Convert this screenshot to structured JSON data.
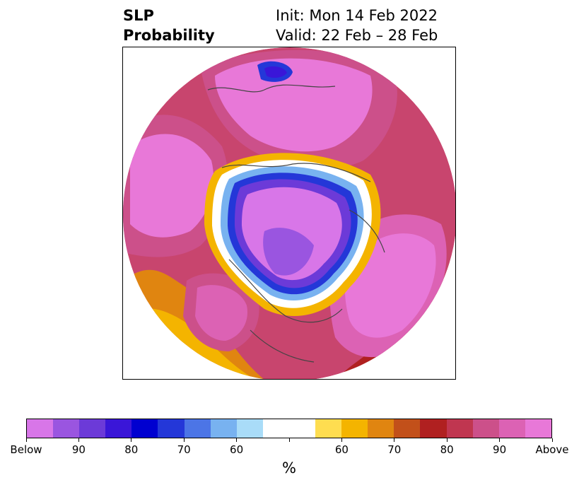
{
  "title": {
    "line1": "SLP",
    "line2": "Probability",
    "init": "Init: Mon 14 Feb 2022",
    "valid": "Valid: 22 Feb – 28 Feb"
  },
  "colorbar": {
    "unit": "%",
    "colors": [
      "#d876e8",
      "#9a55e0",
      "#6c3ad8",
      "#3a16d8",
      "#0000d0",
      "#2437d8",
      "#4c75e6",
      "#78b2f0",
      "#a9dcf8",
      "#ffffff",
      "#ffffff",
      "#fedd50",
      "#f4b400",
      "#e08510",
      "#c2501a",
      "#b02020",
      "#c03650",
      "#cc508a",
      "#dc62b4",
      "#e878d8"
    ],
    "tick_labels": [
      "Below",
      "90",
      "80",
      "70",
      "60",
      "",
      "60",
      "70",
      "80",
      "90",
      "Above"
    ]
  },
  "map": {
    "projection": "north-polar-stereographic",
    "regions": [
      {
        "name": "north-atlantic-europe-above",
        "category": "above"
      },
      {
        "name": "north-pacific-above",
        "category": "above"
      },
      {
        "name": "arctic-canada-below",
        "category": "below"
      },
      {
        "name": "siberia-below",
        "category": "below"
      }
    ]
  }
}
